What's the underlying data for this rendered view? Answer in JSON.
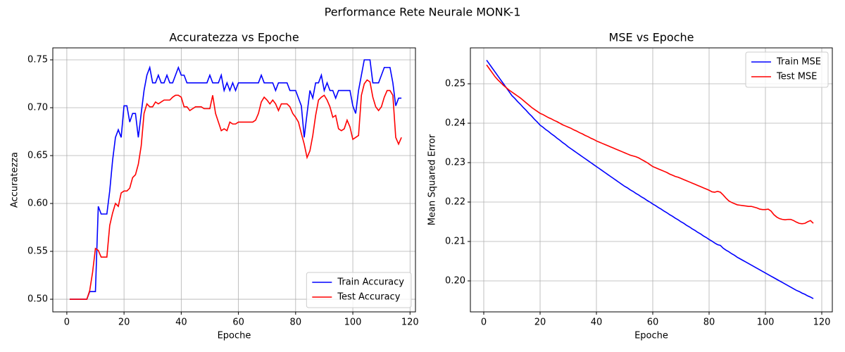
{
  "title": "Performance Rete Neurale MONK-1",
  "chart_data": [
    {
      "type": "line",
      "title": "Accuratezza vs Epoche",
      "xlabel": "Epoche",
      "ylabel": "Accuratezza",
      "x": [
        1,
        2,
        3,
        4,
        5,
        6,
        7,
        8,
        9,
        10,
        11,
        12,
        13,
        14,
        15,
        16,
        17,
        18,
        19,
        20,
        21,
        22,
        23,
        24,
        25,
        26,
        27,
        28,
        29,
        30,
        31,
        32,
        33,
        34,
        35,
        36,
        37,
        38,
        39,
        40,
        41,
        42,
        43,
        44,
        45,
        46,
        47,
        48,
        49,
        50,
        51,
        52,
        53,
        54,
        55,
        56,
        57,
        58,
        59,
        60,
        61,
        62,
        63,
        64,
        65,
        66,
        67,
        68,
        69,
        70,
        71,
        72,
        73,
        74,
        75,
        76,
        77,
        78,
        79,
        80,
        81,
        82,
        83,
        84,
        85,
        86,
        87,
        88,
        89,
        90,
        91,
        92,
        93,
        94,
        95,
        96,
        97,
        98,
        99,
        100,
        101,
        102,
        103,
        104,
        105,
        106,
        107,
        108,
        109,
        110,
        111,
        112,
        113,
        114,
        115,
        116,
        117
      ],
      "series": [
        {
          "name": "Train Accuracy",
          "color": "#0000ff",
          "values": [
            0.5,
            0.5,
            0.5,
            0.5,
            0.5,
            0.5,
            0.5,
            0.508,
            0.508,
            0.508,
            0.597,
            0.589,
            0.589,
            0.589,
            0.613,
            0.645,
            0.669,
            0.677,
            0.669,
            0.702,
            0.702,
            0.685,
            0.694,
            0.694,
            0.669,
            0.694,
            0.718,
            0.734,
            0.742,
            0.726,
            0.726,
            0.734,
            0.726,
            0.726,
            0.734,
            0.726,
            0.726,
            0.734,
            0.742,
            0.734,
            0.734,
            0.726,
            0.726,
            0.726,
            0.726,
            0.726,
            0.726,
            0.726,
            0.726,
            0.734,
            0.726,
            0.726,
            0.726,
            0.734,
            0.718,
            0.726,
            0.718,
            0.726,
            0.718,
            0.726,
            0.726,
            0.726,
            0.726,
            0.726,
            0.726,
            0.726,
            0.726,
            0.734,
            0.726,
            0.726,
            0.726,
            0.726,
            0.718,
            0.726,
            0.726,
            0.726,
            0.726,
            0.718,
            0.718,
            0.718,
            0.71,
            0.702,
            0.669,
            0.694,
            0.718,
            0.71,
            0.726,
            0.726,
            0.734,
            0.718,
            0.726,
            0.718,
            0.718,
            0.71,
            0.718,
            0.718,
            0.718,
            0.718,
            0.718,
            0.702,
            0.694,
            0.718,
            0.734,
            0.75,
            0.75,
            0.75,
            0.726,
            0.726,
            0.726,
            0.734,
            0.742,
            0.742,
            0.742,
            0.726,
            0.702,
            0.71,
            0.71
          ]
        },
        {
          "name": "Test Accuracy",
          "color": "#ff0000",
          "values": [
            0.5,
            0.5,
            0.5,
            0.5,
            0.5,
            0.5,
            0.5,
            0.509,
            0.528,
            0.553,
            0.551,
            0.544,
            0.544,
            0.544,
            0.577,
            0.59,
            0.6,
            0.597,
            0.611,
            0.613,
            0.613,
            0.616,
            0.627,
            0.63,
            0.641,
            0.66,
            0.694,
            0.704,
            0.701,
            0.701,
            0.706,
            0.704,
            0.706,
            0.708,
            0.708,
            0.708,
            0.711,
            0.713,
            0.713,
            0.711,
            0.701,
            0.701,
            0.697,
            0.699,
            0.701,
            0.701,
            0.701,
            0.699,
            0.699,
            0.699,
            0.713,
            0.694,
            0.685,
            0.676,
            0.678,
            0.676,
            0.685,
            0.683,
            0.683,
            0.685,
            0.685,
            0.685,
            0.685,
            0.685,
            0.685,
            0.687,
            0.694,
            0.706,
            0.711,
            0.708,
            0.704,
            0.708,
            0.704,
            0.697,
            0.704,
            0.704,
            0.704,
            0.701,
            0.694,
            0.69,
            0.685,
            0.673,
            0.662,
            0.648,
            0.655,
            0.671,
            0.692,
            0.708,
            0.711,
            0.713,
            0.708,
            0.701,
            0.69,
            0.692,
            0.678,
            0.676,
            0.678,
            0.687,
            0.68,
            0.667,
            0.669,
            0.671,
            0.713,
            0.725,
            0.729,
            0.727,
            0.711,
            0.701,
            0.697,
            0.701,
            0.711,
            0.718,
            0.718,
            0.713,
            0.669,
            0.662,
            0.669
          ]
        }
      ],
      "xlim": [
        -4.9,
        121.9
      ],
      "xticks": [
        0,
        20,
        40,
        60,
        80,
        100,
        120
      ],
      "ylim": [
        0.4868,
        0.7625
      ],
      "yticks": [
        {
          "value": 0.5,
          "label": "0.50"
        },
        {
          "value": 0.55,
          "label": "0.55"
        },
        {
          "value": 0.6,
          "label": "0.60"
        },
        {
          "value": 0.65,
          "label": "0.65"
        },
        {
          "value": 0.7,
          "label": "0.70"
        },
        {
          "value": 0.75,
          "label": "0.75"
        }
      ],
      "grid": true,
      "legend": "lower right"
    },
    {
      "type": "line",
      "title": "MSE vs Epoche",
      "xlabel": "Epoche",
      "ylabel": "Mean Squared Error",
      "x": [
        1,
        2,
        3,
        4,
        5,
        6,
        7,
        8,
        9,
        10,
        11,
        12,
        13,
        14,
        15,
        16,
        17,
        18,
        19,
        20,
        21,
        22,
        23,
        24,
        25,
        26,
        27,
        28,
        29,
        30,
        31,
        32,
        33,
        34,
        35,
        36,
        37,
        38,
        39,
        40,
        41,
        42,
        43,
        44,
        45,
        46,
        47,
        48,
        49,
        50,
        51,
        52,
        53,
        54,
        55,
        56,
        57,
        58,
        59,
        60,
        61,
        62,
        63,
        64,
        65,
        66,
        67,
        68,
        69,
        70,
        71,
        72,
        73,
        74,
        75,
        76,
        77,
        78,
        79,
        80,
        81,
        82,
        83,
        84,
        85,
        86,
        87,
        88,
        89,
        90,
        91,
        92,
        93,
        94,
        95,
        96,
        97,
        98,
        99,
        100,
        101,
        102,
        103,
        104,
        105,
        106,
        107,
        108,
        109,
        110,
        111,
        112,
        113,
        114,
        115,
        116,
        117
      ],
      "series": [
        {
          "name": "Train MSE",
          "color": "#0000ff",
          "values": [
            0.256,
            0.255,
            0.254,
            0.253,
            0.252,
            0.251,
            0.25,
            0.249,
            0.248,
            0.247,
            0.2463,
            0.2455,
            0.2448,
            0.244,
            0.2433,
            0.2425,
            0.2418,
            0.241,
            0.2403,
            0.2395,
            0.239,
            0.2384,
            0.2379,
            0.2373,
            0.2368,
            0.2362,
            0.2357,
            0.2351,
            0.2346,
            0.234,
            0.2335,
            0.233,
            0.2325,
            0.232,
            0.2315,
            0.231,
            0.2305,
            0.23,
            0.2295,
            0.229,
            0.2285,
            0.228,
            0.2275,
            0.227,
            0.2265,
            0.226,
            0.2255,
            0.225,
            0.2245,
            0.224,
            0.2236,
            0.2231,
            0.2227,
            0.2222,
            0.2218,
            0.2213,
            0.2209,
            0.2204,
            0.22,
            0.2195,
            0.2191,
            0.2186,
            0.2182,
            0.2177,
            0.2173,
            0.2168,
            0.2164,
            0.2159,
            0.2155,
            0.215,
            0.2146,
            0.2141,
            0.2137,
            0.2132,
            0.2128,
            0.2123,
            0.2119,
            0.2114,
            0.211,
            0.2105,
            0.2101,
            0.2096,
            0.2092,
            0.209,
            0.2083,
            0.2078,
            0.2074,
            0.2069,
            0.2065,
            0.206,
            0.2056,
            0.2052,
            0.2048,
            0.2044,
            0.204,
            0.2036,
            0.2032,
            0.2028,
            0.2024,
            0.202,
            0.2016,
            0.2012,
            0.2008,
            0.2004,
            0.2,
            0.1996,
            0.1992,
            0.1988,
            0.1984,
            0.198,
            0.1976,
            0.1973,
            0.1969,
            0.1966,
            0.1962,
            0.1959,
            0.1955
          ]
        },
        {
          "name": "Test MSE",
          "color": "#ff0000",
          "values": [
            0.2548,
            0.2538,
            0.2528,
            0.2518,
            0.251,
            0.2503,
            0.2496,
            0.249,
            0.2484,
            0.2479,
            0.2474,
            0.2469,
            0.2464,
            0.2458,
            0.2452,
            0.2446,
            0.244,
            0.2435,
            0.243,
            0.2425,
            0.2422,
            0.2418,
            0.2414,
            0.2411,
            0.2407,
            0.2404,
            0.24,
            0.2396,
            0.2393,
            0.239,
            0.2387,
            0.2383,
            0.238,
            0.2376,
            0.2373,
            0.2369,
            0.2366,
            0.2362,
            0.2359,
            0.2355,
            0.2352,
            0.2349,
            0.2346,
            0.2343,
            0.234,
            0.2337,
            0.2334,
            0.2331,
            0.2328,
            0.2325,
            0.2322,
            0.2319,
            0.2317,
            0.2315,
            0.2312,
            0.2308,
            0.2304,
            0.23,
            0.2295,
            0.229,
            0.2287,
            0.2284,
            0.2281,
            0.2278,
            0.2275,
            0.2271,
            0.2268,
            0.2265,
            0.2263,
            0.226,
            0.2257,
            0.2254,
            0.2251,
            0.2248,
            0.2245,
            0.2242,
            0.2239,
            0.2236,
            0.2233,
            0.223,
            0.2226,
            0.2225,
            0.2227,
            0.2225,
            0.2218,
            0.221,
            0.2203,
            0.2199,
            0.2196,
            0.2193,
            0.2192,
            0.2191,
            0.219,
            0.2189,
            0.2189,
            0.2187,
            0.2185,
            0.2182,
            0.2181,
            0.2181,
            0.2182,
            0.2177,
            0.2168,
            0.2162,
            0.2158,
            0.2156,
            0.2155,
            0.2156,
            0.2156,
            0.2153,
            0.2149,
            0.2146,
            0.2145,
            0.2146,
            0.215,
            0.2153,
            0.2146
          ]
        }
      ],
      "xlim": [
        -4.75,
        123.75
      ],
      "xticks": [
        0,
        20,
        40,
        60,
        80,
        100,
        120
      ],
      "ylim": [
        0.19214,
        0.25911
      ],
      "yticks": [
        {
          "value": 0.2,
          "label": "0.20"
        },
        {
          "value": 0.21,
          "label": "0.21"
        },
        {
          "value": 0.22,
          "label": "0.22"
        },
        {
          "value": 0.23,
          "label": "0.23"
        },
        {
          "value": 0.24,
          "label": "0.24"
        },
        {
          "value": 0.25,
          "label": "0.25"
        }
      ],
      "grid": true,
      "legend": "upper right"
    }
  ]
}
